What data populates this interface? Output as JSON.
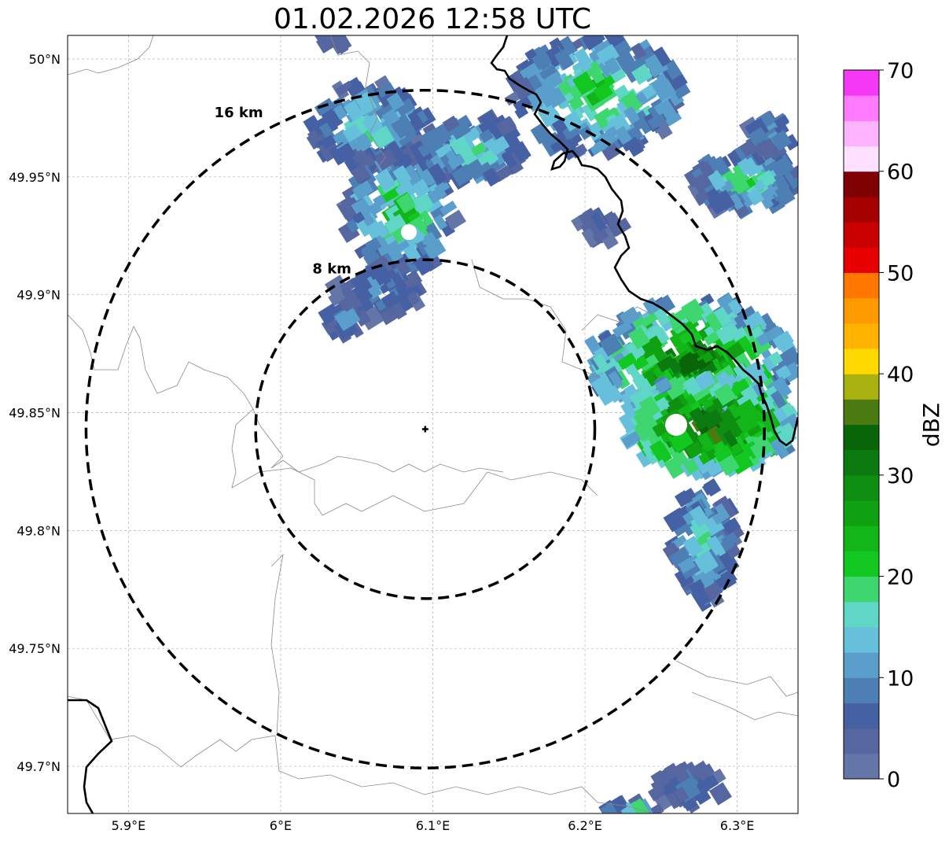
{
  "title": "01.02.2026 12:58 UTC",
  "map": {
    "lat_ticks": [
      "50°N",
      "49.95°N",
      "49.9°N",
      "49.85°N",
      "49.8°N",
      "49.75°N",
      "49.7°N"
    ],
    "lon_ticks": [
      "5.9°E",
      "6°E",
      "6.1°E",
      "6.2°E",
      "6.3°E"
    ],
    "lat_range": [
      49.68,
      50.01
    ],
    "lon_range": [
      5.86,
      6.34
    ],
    "radar_site": {
      "lon": 6.095,
      "lat": 49.843
    },
    "rings": [
      {
        "label": "8 km",
        "radius_km": 8
      },
      {
        "label": "16 km",
        "radius_km": 16
      }
    ]
  },
  "colorbar": {
    "label": "dBZ",
    "ticks": [
      "0",
      "10",
      "20",
      "30",
      "40",
      "50",
      "60",
      "70"
    ],
    "min": 0,
    "max": 70,
    "colors": [
      "#6475a8",
      "#5566a0",
      "#4660a4",
      "#4d7fb5",
      "#5a9fcb",
      "#66c0dc",
      "#5fd6c6",
      "#3ed66e",
      "#12c71f",
      "#12b618",
      "#0fa112",
      "#0f8f12",
      "#0b7a10",
      "#086608",
      "#4a7a10",
      "#aab20f",
      "#ffd900",
      "#ffb300",
      "#ff9900",
      "#ff7700",
      "#e80000",
      "#c80000",
      "#a50000",
      "#7e0000",
      "#ffe1ff",
      "#ffb3ff",
      "#ff7aff",
      "#f538f5"
    ]
  }
}
